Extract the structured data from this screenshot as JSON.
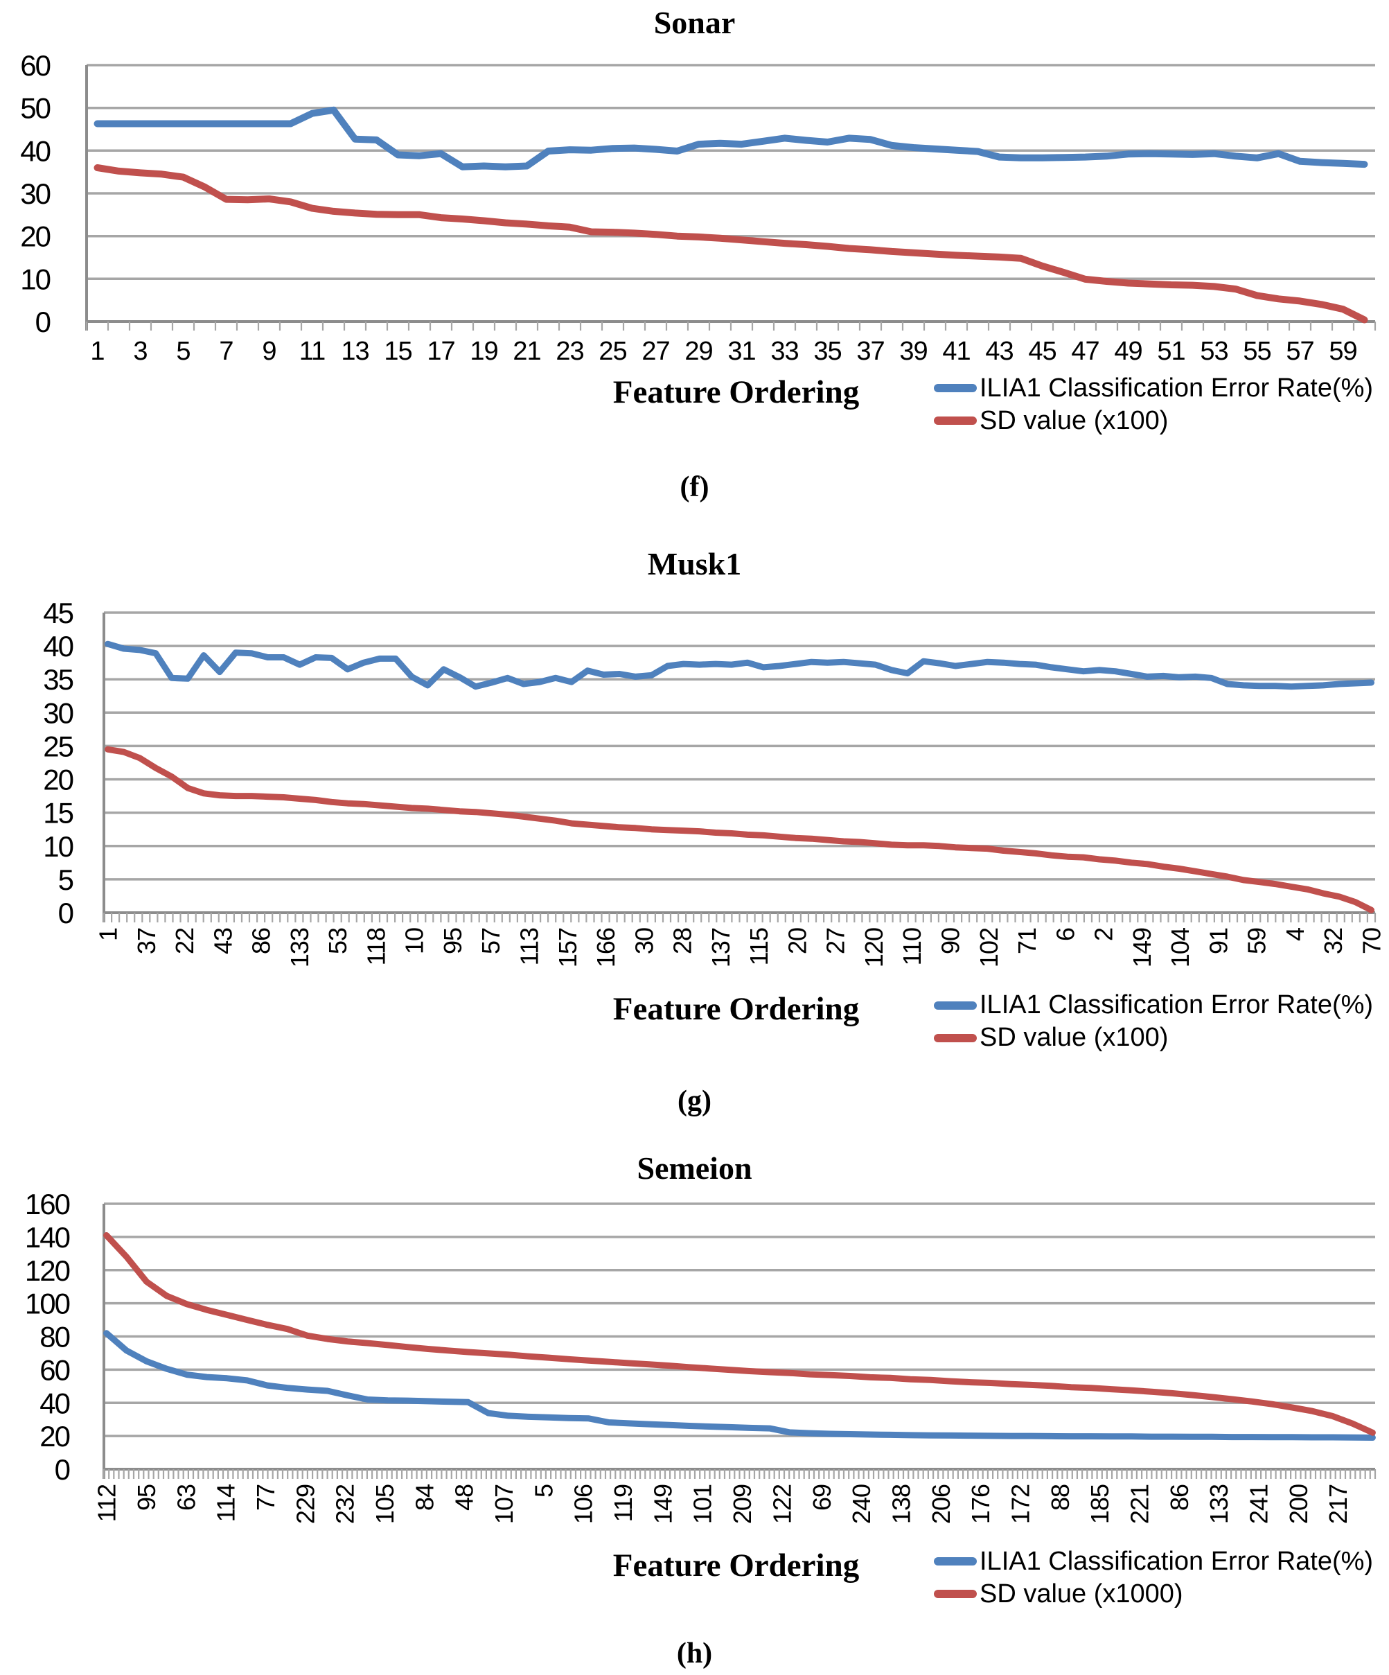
{
  "page": {
    "background": "#FFFFFF"
  },
  "colors": {
    "series_blue": "#4F81BD",
    "series_red": "#C0504D",
    "gridline": "#A6A6A6",
    "axis": "#8C8C8C"
  },
  "chart_data": [
    {
      "type": "line",
      "title": "Sonar",
      "caption": "(f)",
      "xlabel": "Feature Ordering",
      "ylim": [
        0,
        60
      ],
      "yticks": [
        0,
        10,
        20,
        30,
        40,
        50,
        60
      ],
      "grid": true,
      "legend_position": "bottom-right",
      "n_categories": 60,
      "x_label_category_start": 1,
      "x_label_category_step": 2,
      "x_labels_rotated": false,
      "x_tick_labels": [
        "1",
        "3",
        "5",
        "7",
        "9",
        "11",
        "13",
        "15",
        "17",
        "19",
        "21",
        "23",
        "25",
        "27",
        "29",
        "31",
        "33",
        "35",
        "37",
        "39",
        "41",
        "43",
        "45",
        "47",
        "49",
        "51",
        "53",
        "55",
        "57",
        "59"
      ],
      "series": [
        {
          "name": "ILIA1 Classification Error Rate(%)",
          "color": "#4F81BD",
          "values": [
            46.3,
            46.3,
            46.3,
            46.3,
            46.3,
            46.3,
            46.3,
            46.3,
            46.3,
            46.3,
            48.7,
            49.5,
            42.7,
            42.5,
            39.0,
            38.8,
            39.3,
            36.2,
            36.4,
            36.2,
            36.4,
            39.9,
            40.2,
            40.1,
            40.5,
            40.6,
            40.3,
            39.9,
            41.5,
            41.7,
            41.5,
            42.2,
            42.9,
            42.4,
            42.0,
            42.9,
            42.6,
            41.2,
            40.7,
            40.4,
            40.1,
            39.8,
            38.5,
            38.3,
            38.3,
            38.4,
            38.5,
            38.7,
            39.2,
            39.3,
            39.2,
            39.1,
            39.3,
            38.7,
            38.3,
            39.3,
            37.5,
            37.2,
            37.0,
            36.8
          ]
        },
        {
          "name": "SD value (x100)",
          "color": "#C0504D",
          "values": [
            36.0,
            35.2,
            34.8,
            34.5,
            33.8,
            31.5,
            28.6,
            28.5,
            28.7,
            28.0,
            26.5,
            25.8,
            25.4,
            25.1,
            25.0,
            25.0,
            24.3,
            24.0,
            23.6,
            23.1,
            22.8,
            22.4,
            22.1,
            21.0,
            20.9,
            20.7,
            20.4,
            20.0,
            19.8,
            19.5,
            19.1,
            18.7,
            18.3,
            18.0,
            17.6,
            17.1,
            16.8,
            16.4,
            16.1,
            15.8,
            15.5,
            15.3,
            15.1,
            14.8,
            13.0,
            11.5,
            9.9,
            9.4,
            9.0,
            8.8,
            8.6,
            8.5,
            8.2,
            7.6,
            6.1,
            5.3,
            4.8,
            4.0,
            2.9,
            0.4
          ]
        }
      ]
    },
    {
      "type": "line",
      "title": "Musk1",
      "caption": "(g)",
      "xlabel": "Feature Ordering",
      "ylim": [
        0,
        45
      ],
      "yticks": [
        0,
        5,
        10,
        15,
        20,
        25,
        30,
        35,
        40,
        45
      ],
      "grid": true,
      "legend_position": "bottom-right",
      "n_categories": 166,
      "x_label_category_start": 1,
      "x_label_category_step": 5,
      "x_labels_rotated": true,
      "x_tick_labels": [
        "1",
        "37",
        "22",
        "43",
        "86",
        "133",
        "53",
        "118",
        "10",
        "95",
        "57",
        "113",
        "157",
        "166",
        "30",
        "28",
        "137",
        "115",
        "20",
        "27",
        "120",
        "110",
        "90",
        "102",
        "71",
        "6",
        "2",
        "149",
        "104",
        "91",
        "59",
        "4",
        "32",
        "70"
      ],
      "series": [
        {
          "name": "ILIA1 Classification Error Rate(%)",
          "color": "#4F81BD",
          "values": [
            40.3,
            39.6,
            39.4,
            38.9,
            35.2,
            35.1,
            38.6,
            36.1,
            39.0,
            38.9,
            38.3,
            38.3,
            37.2,
            38.3,
            38.2,
            36.5,
            37.5,
            38.1,
            38.1,
            35.4,
            34.1,
            36.5,
            35.3,
            33.9,
            34.5,
            35.2,
            34.3,
            34.6,
            35.2,
            34.6,
            36.3,
            35.7,
            35.8,
            35.4,
            35.6,
            37.0,
            37.3,
            37.2,
            37.3,
            37.2,
            37.5,
            36.8,
            37.0,
            37.3,
            37.6,
            37.5,
            37.6,
            37.4,
            37.2,
            36.4,
            35.9,
            37.7,
            37.4,
            37.0,
            37.3,
            37.6,
            37.5,
            37.3,
            37.2,
            36.8,
            36.5,
            36.2,
            36.4,
            36.2,
            35.8,
            35.4,
            35.5,
            35.3,
            35.4,
            35.2,
            34.3,
            34.1,
            34.0,
            34.0,
            33.9,
            34.0,
            34.1,
            34.3,
            34.4,
            34.5
          ]
        },
        {
          "name": "SD value (x100)",
          "color": "#C0504D",
          "values": [
            24.5,
            24.1,
            23.2,
            21.7,
            20.4,
            18.7,
            17.9,
            17.6,
            17.5,
            17.5,
            17.4,
            17.3,
            17.1,
            16.9,
            16.6,
            16.4,
            16.3,
            16.1,
            15.9,
            15.7,
            15.6,
            15.4,
            15.2,
            15.1,
            14.9,
            14.7,
            14.4,
            14.1,
            13.8,
            13.4,
            13.2,
            13.0,
            12.8,
            12.7,
            12.5,
            12.4,
            12.3,
            12.2,
            12.0,
            11.9,
            11.7,
            11.6,
            11.4,
            11.2,
            11.1,
            10.9,
            10.7,
            10.6,
            10.4,
            10.2,
            10.1,
            10.1,
            10.0,
            9.8,
            9.7,
            9.6,
            9.3,
            9.1,
            8.9,
            8.6,
            8.4,
            8.3,
            8.0,
            7.8,
            7.5,
            7.3,
            6.9,
            6.6,
            6.2,
            5.8,
            5.4,
            4.9,
            4.6,
            4.3,
            3.9,
            3.5,
            2.9,
            2.4,
            1.6,
            0.4
          ]
        }
      ]
    },
    {
      "type": "line",
      "title": "Semeion",
      "caption": "(h)",
      "xlabel": "Feature Ordering",
      "ylim": [
        0,
        160
      ],
      "yticks": [
        0,
        20,
        40,
        60,
        80,
        100,
        120,
        140,
        160
      ],
      "grid": true,
      "legend_position": "bottom-right",
      "n_categories": 256,
      "x_label_category_start": 1,
      "x_label_category_step": 8,
      "x_labels_rotated": true,
      "x_tick_labels": [
        "112",
        "95",
        "63",
        "114",
        "77",
        "229",
        "232",
        "105",
        "84",
        "48",
        "107",
        "5",
        "106",
        "119",
        "149",
        "101",
        "209",
        "122",
        "69",
        "240",
        "138",
        "206",
        "176",
        "172",
        "88",
        "185",
        "221",
        "86",
        "133",
        "241",
        "200",
        "217"
      ],
      "series": [
        {
          "name": "ILIA1 Classification Error Rate(%)",
          "color": "#4F81BD",
          "values": [
            82,
            71.5,
            65,
            60.5,
            57,
            55.5,
            54.8,
            53.5,
            50.5,
            49,
            48,
            47.2,
            44.5,
            42,
            41.5,
            41.3,
            41,
            40.7,
            40.4,
            33.8,
            32.2,
            31.6,
            31.2,
            30.8,
            30.6,
            28.2,
            27.6,
            27.1,
            26.6,
            26.1,
            25.7,
            25.3,
            24.9,
            24.6,
            22.2,
            21.7,
            21.3,
            21.1,
            20.9,
            20.7,
            20.5,
            20.4,
            20.3,
            20.2,
            20.1,
            20.0,
            20.0,
            19.9,
            19.8,
            19.8,
            19.7,
            19.7,
            19.6,
            19.6,
            19.5,
            19.5,
            19.4,
            19.4,
            19.3,
            19.3,
            19.2,
            19.2,
            19.1,
            19.0
          ]
        },
        {
          "name": "SD value (x1000)",
          "color": "#C0504D",
          "values": [
            141,
            128,
            113,
            104.5,
            99.5,
            96,
            93,
            90,
            87,
            84.5,
            80.5,
            78.5,
            77,
            76,
            74.8,
            73.6,
            72.5,
            71.5,
            70.6,
            69.8,
            69,
            68,
            67.2,
            66.3,
            65.5,
            64.7,
            63.9,
            63.2,
            62.4,
            61.5,
            60.7,
            59.9,
            59.1,
            58.5,
            58,
            57.2,
            56.7,
            56.2,
            55.4,
            55,
            54.2,
            53.8,
            53,
            52.4,
            52,
            51.3,
            50.8,
            50.2,
            49.4,
            49,
            48.2,
            47.5,
            46.7,
            45.8,
            44.7,
            43.5,
            42.2,
            40.8,
            39.2,
            37.2,
            35,
            32,
            27.5,
            22
          ]
        }
      ]
    }
  ]
}
